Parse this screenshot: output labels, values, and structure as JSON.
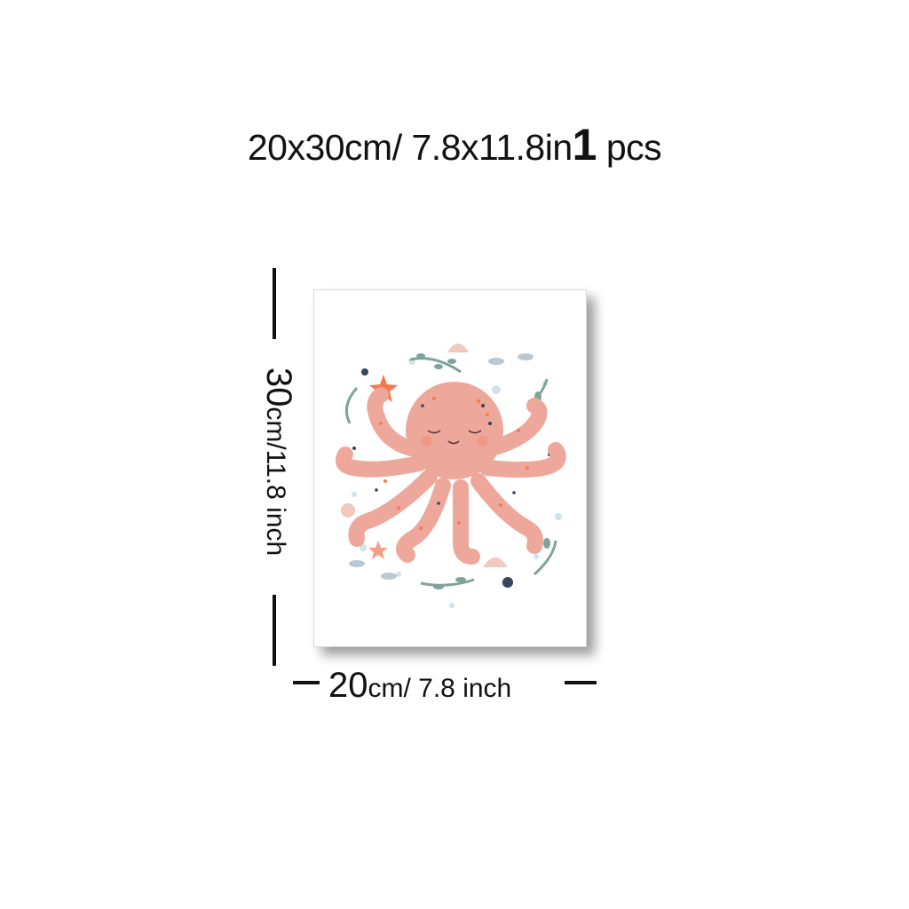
{
  "header": {
    "size_main": "20",
    "size_rest": "x30cm/ 7.8x11.8in",
    "quantity_number": "1",
    "quantity_unit": " pcs"
  },
  "dimensions": {
    "height_number": "30",
    "height_rest": "cm/11.8 inch",
    "width_number": "20",
    "width_rest": "cm/ 7.8 inch"
  },
  "artwork": {
    "subject": "octopus-illustration",
    "colors": {
      "octopus": "#eea79b",
      "spots": "#f08050",
      "dark_spots": "#34455c",
      "seaweed": "#7fa39a",
      "starfish": "#f47a4c",
      "bubbles": "#cfe4ea"
    }
  }
}
